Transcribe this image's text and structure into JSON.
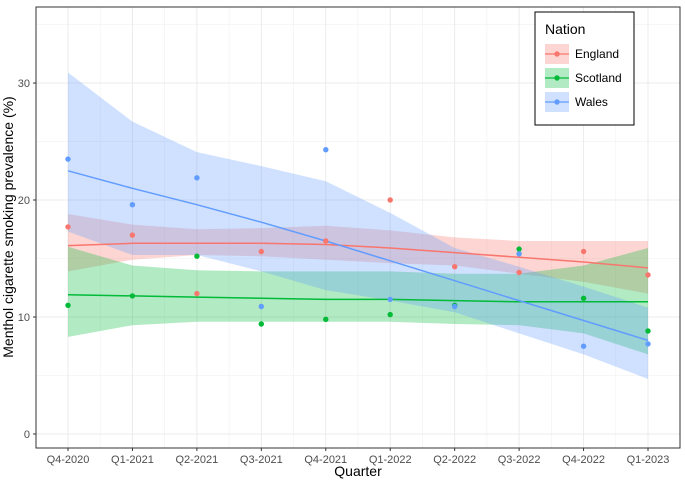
{
  "chart_data": {
    "type": "scatter",
    "title": "",
    "xlabel": "Quarter",
    "ylabel": "Menthol cigarette smoking prevalence (%)",
    "categories": [
      "Q4-2020",
      "Q1-2021",
      "Q2-2021",
      "Q3-2021",
      "Q4-2021",
      "Q1-2022",
      "Q2-2022",
      "Q3-2022",
      "Q4-2022",
      "Q1-2023"
    ],
    "ylim": [
      -1.2,
      36.5
    ],
    "yticks": [
      0,
      10,
      20,
      30
    ],
    "grid": true,
    "legend": {
      "title": "Nation",
      "position": "top-right"
    },
    "series": [
      {
        "name": "England",
        "color": "#F8766D",
        "band_color": "#F8766D",
        "values": [
          17.7,
          17.0,
          12.0,
          15.6,
          16.5,
          20.0,
          14.3,
          13.8,
          15.6,
          13.6
        ],
        "trend": [
          16.1,
          16.3,
          16.3,
          16.3,
          16.2,
          15.9,
          15.5,
          15.1,
          14.7,
          14.2
        ],
        "ci_low": [
          13.9,
          14.9,
          15.3,
          15.2,
          14.9,
          14.6,
          14.4,
          13.7,
          13.0,
          12.0
        ],
        "ci_high": [
          18.8,
          17.9,
          17.5,
          17.6,
          17.8,
          17.4,
          16.8,
          16.5,
          16.5,
          16.5
        ]
      },
      {
        "name": "Scotland",
        "color": "#00BA38",
        "band_color": "#00BA38",
        "values": [
          11.0,
          11.8,
          15.2,
          9.4,
          9.8,
          10.2,
          11.0,
          15.8,
          11.6,
          8.8
        ],
        "trend": [
          11.9,
          11.8,
          11.7,
          11.6,
          11.5,
          11.5,
          11.4,
          11.3,
          11.3,
          11.3
        ],
        "ci_low": [
          8.3,
          9.3,
          9.6,
          9.6,
          9.6,
          9.6,
          9.4,
          9.3,
          8.6,
          6.8
        ],
        "ci_high": [
          16.0,
          14.4,
          14.0,
          13.9,
          13.9,
          13.9,
          13.7,
          13.7,
          14.4,
          15.9
        ]
      },
      {
        "name": "Wales",
        "color": "#619CFF",
        "band_color": "#619CFF",
        "values": [
          23.5,
          19.6,
          21.9,
          10.9,
          24.3,
          11.5,
          10.9,
          15.4,
          7.5,
          7.7
        ],
        "trend": [
          22.5,
          21.0,
          19.6,
          18.1,
          16.5,
          14.8,
          13.1,
          11.4,
          9.7,
          8.0
        ],
        "ci_low": [
          17.3,
          15.3,
          15.3,
          13.9,
          12.3,
          11.4,
          10.4,
          8.6,
          6.8,
          4.7
        ],
        "ci_high": [
          30.9,
          26.7,
          24.1,
          22.9,
          21.6,
          18.9,
          15.9,
          14.3,
          12.6,
          10.8
        ]
      }
    ]
  }
}
